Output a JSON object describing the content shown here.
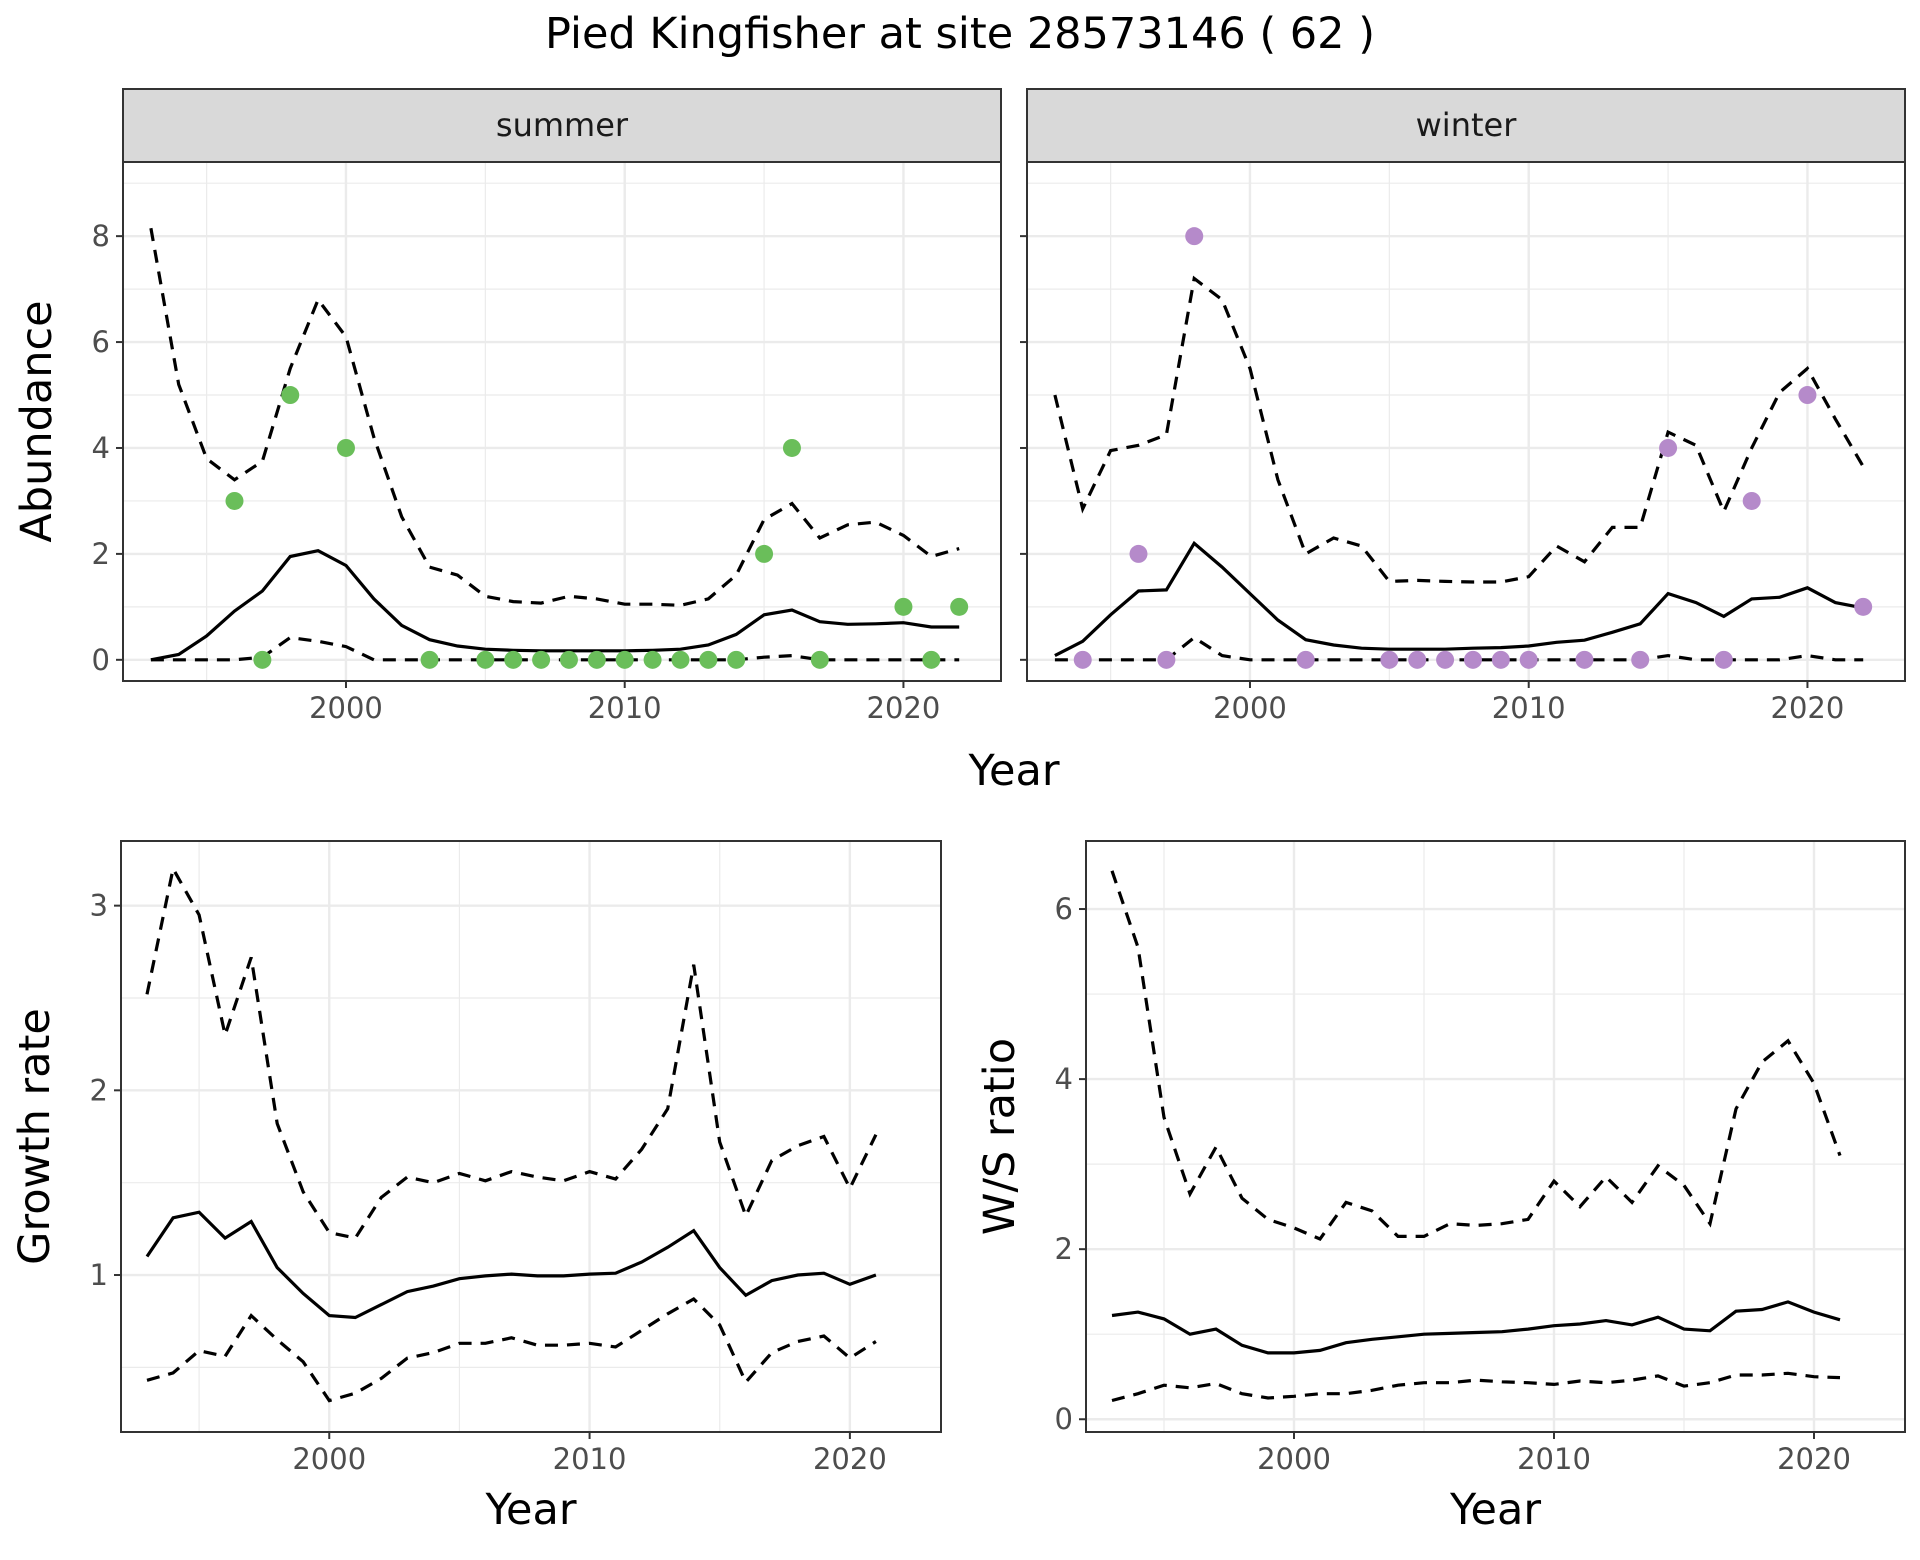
{
  "title": "Pied Kingfisher at site 28573146 ( 62 )",
  "colors": {
    "summer_points": "#6ABE5A",
    "winter_points": "#B58ACA",
    "lines": "#000000"
  },
  "chart_data": [
    {
      "type": "line",
      "panel": "summer",
      "strip_label": "summer",
      "xlabel": "Year",
      "ylabel": "Abundance",
      "xlim": [
        1992,
        2023.5
      ],
      "ylim": [
        -0.4,
        9.4
      ],
      "x_ticks": [
        2000,
        2010,
        2020
      ],
      "y_ticks": [
        0,
        2,
        4,
        6,
        8
      ],
      "x": [
        1993,
        1994,
        1995,
        1996,
        1997,
        1998,
        1999,
        2000,
        2001,
        2002,
        2003,
        2004,
        2005,
        2006,
        2007,
        2008,
        2009,
        2010,
        2011,
        2012,
        2013,
        2014,
        2015,
        2016,
        2017,
        2018,
        2019,
        2020,
        2021,
        2022
      ],
      "series": [
        {
          "role": "mean",
          "style": "solid",
          "values": [
            0,
            0.1,
            0.45,
            0.92,
            1.3,
            1.95,
            2.06,
            1.78,
            1.15,
            0.65,
            0.38,
            0.26,
            0.2,
            0.18,
            0.17,
            0.17,
            0.17,
            0.17,
            0.18,
            0.2,
            0.28,
            0.48,
            0.85,
            0.94,
            0.72,
            0.67,
            0.68,
            0.7,
            0.62,
            0.62
          ]
        },
        {
          "role": "upper",
          "style": "dashed",
          "values": [
            8.15,
            5.2,
            3.8,
            3.4,
            3.75,
            5.5,
            6.8,
            6.1,
            4.2,
            2.7,
            1.75,
            1.6,
            1.2,
            1.1,
            1.07,
            1.2,
            1.15,
            1.05,
            1.05,
            1.03,
            1.15,
            1.6,
            2.65,
            2.95,
            2.3,
            2.55,
            2.6,
            2.35,
            1.95,
            2.1
          ]
        },
        {
          "role": "lower",
          "style": "dashed",
          "values": [
            0,
            0,
            0,
            0,
            0.05,
            0.42,
            0.35,
            0.25,
            0,
            0,
            0,
            0,
            0,
            0,
            0,
            0,
            0,
            0,
            0,
            0,
            0,
            0,
            0.05,
            0.08,
            0,
            0,
            0,
            0,
            0,
            0
          ]
        },
        {
          "role": "observed",
          "style": "points",
          "x": [
            1996,
            1997,
            1998,
            2000,
            2003,
            2005,
            2006,
            2007,
            2008,
            2009,
            2010,
            2011,
            2012,
            2013,
            2014,
            2015,
            2016,
            2017,
            2020,
            2021,
            2022
          ],
          "values": [
            3,
            0,
            5,
            4,
            0,
            0,
            0,
            0,
            0,
            0,
            0,
            0,
            0,
            0,
            0,
            2,
            4,
            0,
            1,
            0,
            1
          ]
        }
      ]
    },
    {
      "type": "line",
      "panel": "winter",
      "strip_label": "winter",
      "xlabel": "Year",
      "ylabel": "Abundance",
      "xlim": [
        1992,
        2023.5
      ],
      "ylim": [
        -0.4,
        9.4
      ],
      "x_ticks": [
        2000,
        2010,
        2020
      ],
      "y_ticks": [
        0,
        2,
        4,
        6,
        8
      ],
      "x": [
        1993,
        1994,
        1995,
        1996,
        1997,
        1998,
        1999,
        2000,
        2001,
        2002,
        2003,
        2004,
        2005,
        2006,
        2007,
        2008,
        2009,
        2010,
        2011,
        2012,
        2013,
        2014,
        2015,
        2016,
        2017,
        2018,
        2019,
        2020,
        2021,
        2022
      ],
      "series": [
        {
          "role": "mean",
          "style": "solid",
          "values": [
            0.08,
            0.35,
            0.85,
            1.3,
            1.32,
            2.2,
            1.75,
            1.25,
            0.75,
            0.38,
            0.28,
            0.22,
            0.2,
            0.2,
            0.2,
            0.22,
            0.23,
            0.26,
            0.33,
            0.37,
            0.52,
            0.68,
            1.25,
            1.08,
            0.82,
            1.15,
            1.18,
            1.36,
            1.08,
            0.98
          ]
        },
        {
          "role": "upper",
          "style": "dashed",
          "values": [
            5.0,
            2.85,
            3.95,
            4.05,
            4.25,
            7.2,
            6.8,
            5.5,
            3.4,
            2.0,
            2.3,
            2.15,
            1.48,
            1.5,
            1.48,
            1.47,
            1.47,
            1.57,
            2.15,
            1.85,
            2.5,
            2.5,
            4.3,
            4.05,
            2.8,
            4.0,
            5.05,
            5.5,
            4.55,
            3.65
          ]
        },
        {
          "role": "lower",
          "style": "dashed",
          "values": [
            0,
            0,
            0,
            0,
            0,
            0.42,
            0.08,
            0,
            0,
            0,
            0,
            0,
            0,
            0,
            0,
            0,
            0,
            0,
            0,
            0,
            0,
            0,
            0.08,
            0,
            0,
            0,
            0,
            0.08,
            0,
            0
          ]
        },
        {
          "role": "observed",
          "style": "points",
          "x": [
            1994,
            1996,
            1997,
            1998,
            2002,
            2005,
            2006,
            2007,
            2008,
            2009,
            2010,
            2012,
            2014,
            2015,
            2017,
            2018,
            2020,
            2022
          ],
          "values": [
            0,
            2,
            0,
            8,
            0,
            0,
            0,
            0,
            0,
            0,
            0,
            0,
            0,
            4,
            0,
            3,
            5,
            1
          ]
        }
      ]
    },
    {
      "type": "line",
      "panel": "growth",
      "xlabel": "Year",
      "ylabel": "Growth rate",
      "xlim": [
        1992,
        2023.5
      ],
      "ylim": [
        0.15,
        3.35
      ],
      "x_ticks": [
        2000,
        2010,
        2020
      ],
      "y_ticks": [
        1,
        2,
        3
      ],
      "x": [
        1993,
        1994,
        1995,
        1996,
        1997,
        1998,
        1999,
        2000,
        2001,
        2002,
        2003,
        2004,
        2005,
        2006,
        2007,
        2008,
        2009,
        2010,
        2011,
        2012,
        2013,
        2014,
        2015,
        2016,
        2017,
        2018,
        2019,
        2020,
        2021
      ],
      "series": [
        {
          "role": "mean",
          "style": "solid",
          "values": [
            1.1,
            1.31,
            1.34,
            1.2,
            1.29,
            1.04,
            0.9,
            0.78,
            0.77,
            0.84,
            0.91,
            0.94,
            0.98,
            0.995,
            1.005,
            0.995,
            0.995,
            1.005,
            1.01,
            1.07,
            1.15,
            1.24,
            1.04,
            0.89,
            0.97,
            1.0,
            1.01,
            0.95,
            1.0
          ]
        },
        {
          "role": "upper",
          "style": "dashed",
          "values": [
            2.52,
            3.2,
            2.95,
            2.3,
            2.72,
            1.82,
            1.45,
            1.23,
            1.2,
            1.42,
            1.53,
            1.5,
            1.55,
            1.51,
            1.56,
            1.53,
            1.51,
            1.56,
            1.52,
            1.68,
            1.9,
            2.68,
            1.72,
            1.32,
            1.62,
            1.7,
            1.75,
            1.47,
            1.76
          ]
        },
        {
          "role": "lower",
          "style": "dashed",
          "values": [
            0.43,
            0.47,
            0.59,
            0.56,
            0.78,
            0.65,
            0.53,
            0.32,
            0.36,
            0.44,
            0.55,
            0.58,
            0.63,
            0.63,
            0.66,
            0.62,
            0.62,
            0.63,
            0.61,
            0.7,
            0.79,
            0.87,
            0.73,
            0.42,
            0.58,
            0.64,
            0.67,
            0.55,
            0.64
          ]
        }
      ]
    },
    {
      "type": "line",
      "panel": "ratio",
      "xlabel": "Year",
      "ylabel": "W/S ratio",
      "xlim": [
        1992,
        2023.5
      ],
      "ylim": [
        -0.15,
        6.8
      ],
      "x_ticks": [
        2000,
        2010,
        2020
      ],
      "y_ticks": [
        0,
        2,
        4,
        6
      ],
      "x": [
        1993,
        1994,
        1995,
        1996,
        1997,
        1998,
        1999,
        2000,
        2001,
        2002,
        2003,
        2004,
        2005,
        2006,
        2007,
        2008,
        2009,
        2010,
        2011,
        2012,
        2013,
        2014,
        2015,
        2016,
        2017,
        2018,
        2019,
        2020,
        2021
      ],
      "series": [
        {
          "role": "mean",
          "style": "solid",
          "values": [
            1.22,
            1.26,
            1.18,
            1.0,
            1.06,
            0.87,
            0.78,
            0.78,
            0.81,
            0.9,
            0.94,
            0.97,
            1.0,
            1.01,
            1.02,
            1.03,
            1.06,
            1.1,
            1.12,
            1.16,
            1.11,
            1.2,
            1.06,
            1.04,
            1.27,
            1.29,
            1.38,
            1.26,
            1.17
          ]
        },
        {
          "role": "upper",
          "style": "dashed",
          "values": [
            6.45,
            5.55,
            3.55,
            2.65,
            3.2,
            2.6,
            2.35,
            2.25,
            2.12,
            2.55,
            2.45,
            2.15,
            2.15,
            2.3,
            2.28,
            2.3,
            2.35,
            2.8,
            2.5,
            2.85,
            2.55,
            2.98,
            2.75,
            2.3,
            3.65,
            4.2,
            4.45,
            3.95,
            3.1
          ]
        },
        {
          "role": "lower",
          "style": "dashed",
          "values": [
            0.22,
            0.3,
            0.4,
            0.37,
            0.42,
            0.3,
            0.25,
            0.27,
            0.3,
            0.3,
            0.34,
            0.4,
            0.43,
            0.43,
            0.46,
            0.44,
            0.43,
            0.41,
            0.45,
            0.43,
            0.46,
            0.51,
            0.39,
            0.43,
            0.52,
            0.52,
            0.54,
            0.5,
            0.49
          ]
        }
      ]
    }
  ]
}
